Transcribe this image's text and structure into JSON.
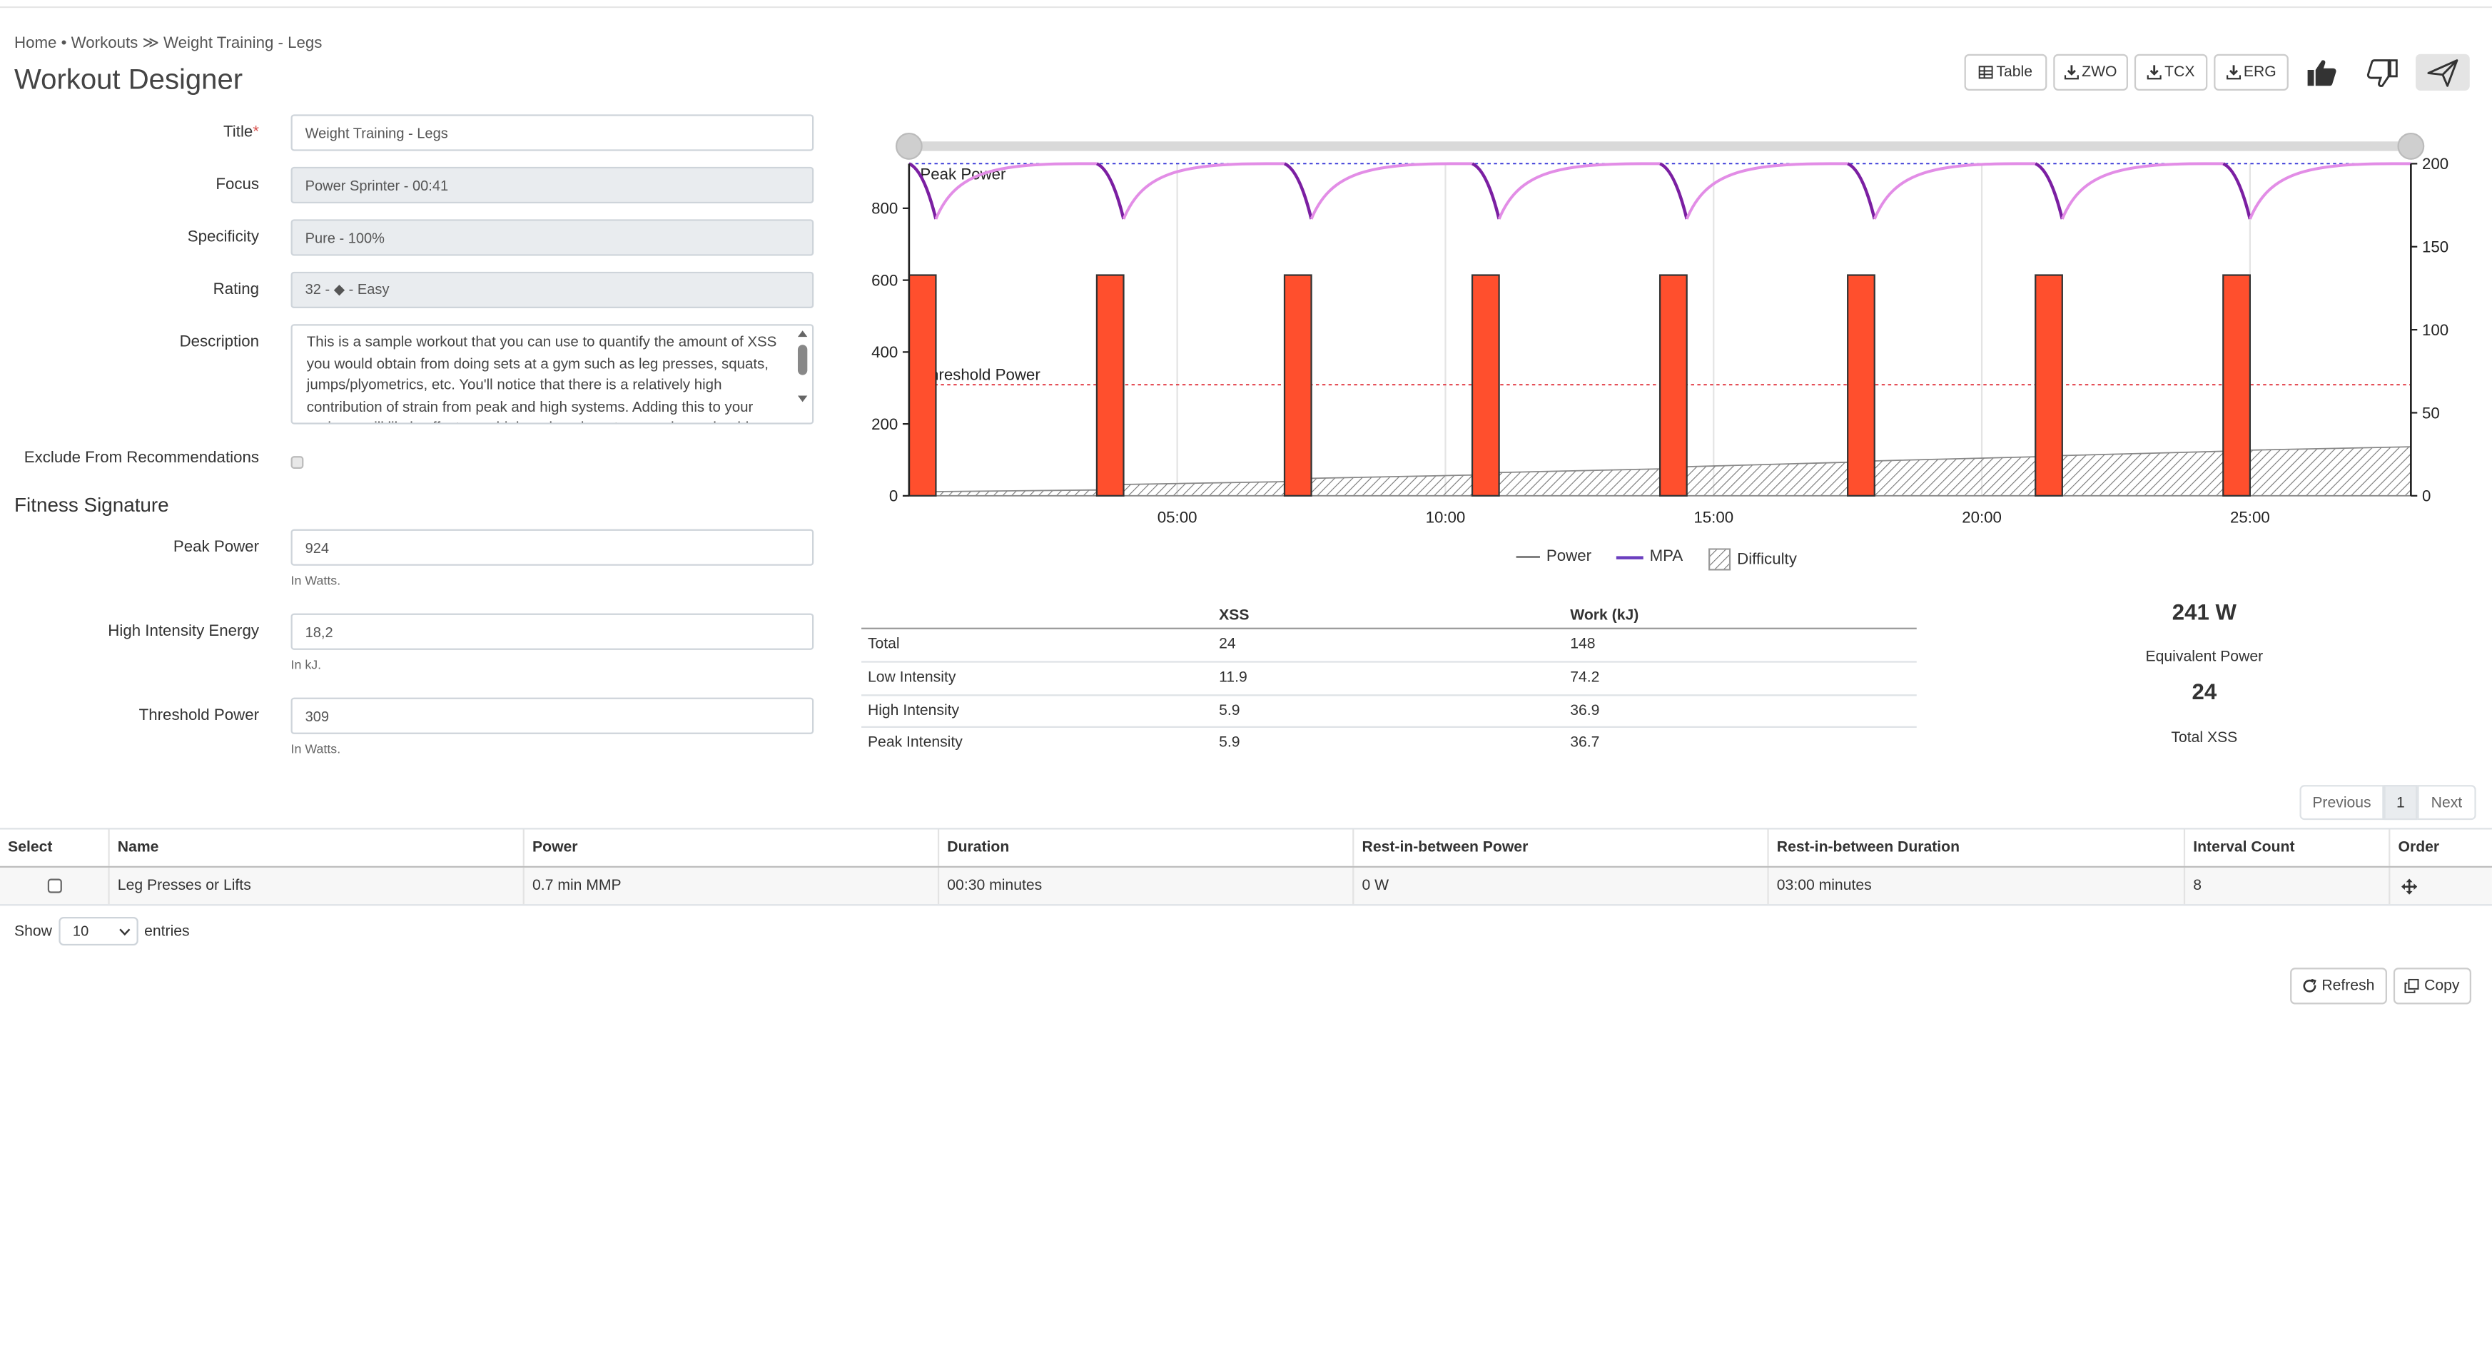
{
  "breadcrumb": {
    "items": [
      "Home",
      "Workouts",
      "Weight Training - Legs"
    ],
    "sep1": " • ",
    "sep2": " ≫ "
  },
  "page_title": "Workout Designer",
  "toolbar": {
    "table": "Table",
    "zwo": "ZWO",
    "tcx": "TCX",
    "erg": "ERG"
  },
  "form": {
    "title_label": "Title",
    "title_value": "Weight Training - Legs",
    "focus_label": "Focus",
    "focus_value": "Power Sprinter - 00:41",
    "specificity_label": "Specificity",
    "specificity_value": "Pure - 100%",
    "rating_label": "Rating",
    "rating_value": "32 - ◆ - Easy",
    "description_label": "Description",
    "description_value": "This is a sample workout that you can use to quantify the amount of XSS you would obtain from doing sets at a gym such as leg presses, squats, jumps/plyometrics, etc.  You'll notice that there is a relatively high contribution of strain from peak and high systems.  Adding this to your regimen will likely affect your high and peak systems and you should",
    "exclude_label": "Exclude From Recommendations"
  },
  "fitness_signature": {
    "title": "Fitness Signature",
    "peak_power_label": "Peak Power",
    "peak_power_value": "924",
    "peak_power_help": "In Watts.",
    "hie_label": "High Intensity Energy",
    "hie_value": "18,2",
    "hie_help": "In kJ.",
    "tp_label": "Threshold Power",
    "tp_value": "309",
    "tp_help": "In Watts."
  },
  "chart_data": {
    "type": "bar",
    "x_unit": "time mm:ss",
    "xlim": [
      "00:00",
      "28:00"
    ],
    "x_ticks": [
      "05:00",
      "10:00",
      "15:00",
      "20:00",
      "25:00"
    ],
    "y_left": {
      "ylim": [
        0,
        924
      ],
      "ticks": [
        0,
        200,
        400,
        600,
        800
      ]
    },
    "y_right": {
      "ylim": [
        0,
        200
      ],
      "ticks": [
        0,
        50,
        100,
        150,
        200
      ]
    },
    "annotations": [
      {
        "label": "Peak Power",
        "y": 924,
        "color": "#2b2bd6"
      },
      {
        "label": "Threshold Power",
        "y": 309,
        "color": "#e0303a"
      }
    ],
    "power_intervals": {
      "start_times_sec": [
        0,
        210,
        420,
        630,
        840,
        1050,
        1260,
        1470
      ],
      "duration_sec": 30,
      "watts": 614,
      "rest_watts": 0
    },
    "difficulty_steps": [
      {
        "start_sec": 30,
        "end_sec": 210,
        "y0": 2.5,
        "y1": 3.5
      },
      {
        "start_sec": 240,
        "end_sec": 420,
        "y0": 6.8,
        "y1": 8.5
      },
      {
        "start_sec": 450,
        "end_sec": 630,
        "y0": 10.5,
        "y1": 12.5
      },
      {
        "start_sec": 660,
        "end_sec": 840,
        "y0": 14.0,
        "y1": 16.2
      },
      {
        "start_sec": 870,
        "end_sec": 1050,
        "y0": 17.5,
        "y1": 20.2
      },
      {
        "start_sec": 1080,
        "end_sec": 1260,
        "y0": 21.0,
        "y1": 23.5
      },
      {
        "start_sec": 1290,
        "end_sec": 1470,
        "y0": 24.2,
        "y1": 26.8
      },
      {
        "start_sec": 1500,
        "end_sec": 1680,
        "y0": 27.5,
        "y1": 29.5
      }
    ],
    "mpa": {
      "max": 924,
      "min_after_interval": 770
    },
    "legend": [
      "Power",
      "MPA",
      "Difficulty"
    ],
    "colors": {
      "bar": "#ff4f2d",
      "mpa_dark": "#7b1fa2",
      "mpa_light": "#e28de6",
      "peak_line": "#3b3bd6",
      "threshold_line": "#e0303a"
    }
  },
  "stats": {
    "headers": [
      "",
      "XSS",
      "Work (kJ)"
    ],
    "rows": [
      {
        "name": "Total",
        "xss": "24",
        "work": "148"
      },
      {
        "name": "Low Intensity",
        "xss": "11.9",
        "work": "74.2"
      },
      {
        "name": "High Intensity",
        "xss": "5.9",
        "work": "36.9"
      },
      {
        "name": "Peak Intensity",
        "xss": "5.9",
        "work": "36.7"
      }
    ],
    "equivalent_power_value": "241 W",
    "equivalent_power_label": "Equivalent Power",
    "total_xss_value": "24",
    "total_xss_label": "Total XSS"
  },
  "pagination": {
    "previous": "Previous",
    "page": "1",
    "next": "Next"
  },
  "intervals": {
    "headers": [
      "Select",
      "Name",
      "Power",
      "Duration",
      "Rest-in-between Power",
      "Rest-in-between Duration",
      "Interval Count",
      "Order"
    ],
    "rows": [
      {
        "name": "Leg Presses or Lifts",
        "power": "0.7 min MMP",
        "duration": "00:30 minutes",
        "rest_power": "0 W",
        "rest_duration": "03:00 minutes",
        "count": "8"
      }
    ]
  },
  "show_entries": {
    "show": "Show",
    "value": "10",
    "entries": "entries"
  },
  "bottom_buttons": {
    "refresh": "Refresh",
    "copy": "Copy"
  }
}
